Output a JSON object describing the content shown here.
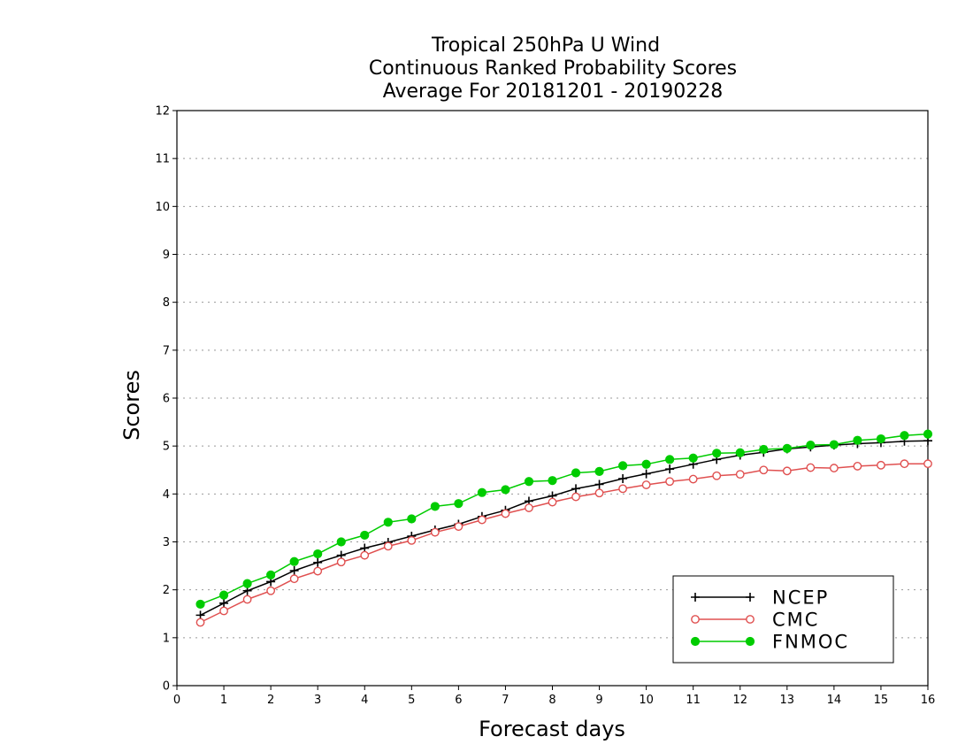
{
  "chart_data": {
    "type": "line",
    "title_lines": [
      "Tropical 250hPa U Wind",
      "Continuous Ranked Probability Scores",
      "Average For 20181201 - 20190228"
    ],
    "xlabel": "Forecast days",
    "ylabel": "Scores",
    "xlim": [
      0,
      16
    ],
    "ylim": [
      0,
      12
    ],
    "xticks": [
      0,
      1,
      2,
      3,
      4,
      5,
      6,
      7,
      8,
      9,
      10,
      11,
      12,
      13,
      14,
      15,
      16
    ],
    "yticks": [
      0,
      1,
      2,
      3,
      4,
      5,
      6,
      7,
      8,
      9,
      10,
      11,
      12
    ],
    "grid": "horizontal dotted",
    "legend_position": "bottom-right",
    "x": [
      0.5,
      1,
      1.5,
      2,
      2.5,
      3,
      3.5,
      4,
      4.5,
      5,
      5.5,
      6,
      6.5,
      7,
      7.5,
      8,
      8.5,
      9,
      9.5,
      10,
      10.5,
      11,
      11.5,
      12,
      12.5,
      13,
      13.5,
      14,
      14.5,
      15,
      15.5,
      16
    ],
    "series": [
      {
        "name": "NCEP",
        "color": "#000000",
        "marker": "plus",
        "values": [
          1.47,
          1.72,
          1.98,
          2.17,
          2.4,
          2.57,
          2.72,
          2.87,
          2.99,
          3.12,
          3.25,
          3.37,
          3.53,
          3.66,
          3.85,
          3.96,
          4.11,
          4.2,
          4.32,
          4.42,
          4.52,
          4.62,
          4.72,
          4.81,
          4.87,
          4.94,
          4.98,
          5.02,
          5.05,
          5.07,
          5.1,
          5.11
        ]
      },
      {
        "name": "CMC",
        "color": "#e05050",
        "marker": "open-circle",
        "values": [
          1.32,
          1.56,
          1.8,
          1.98,
          2.23,
          2.39,
          2.58,
          2.72,
          2.91,
          3.03,
          3.2,
          3.32,
          3.46,
          3.59,
          3.71,
          3.83,
          3.94,
          4.02,
          4.11,
          4.19,
          4.26,
          4.31,
          4.38,
          4.41,
          4.5,
          4.48,
          4.55,
          4.54,
          4.58,
          4.6,
          4.63,
          4.63
        ]
      },
      {
        "name": "FNMOC",
        "color": "#00cc00",
        "marker": "filled-circle",
        "values": [
          1.7,
          1.89,
          2.13,
          2.31,
          2.59,
          2.75,
          3.0,
          3.14,
          3.41,
          3.48,
          3.74,
          3.8,
          4.03,
          4.09,
          4.26,
          4.28,
          4.44,
          4.47,
          4.59,
          4.62,
          4.72,
          4.75,
          4.85,
          4.86,
          4.93,
          4.95,
          5.02,
          5.03,
          5.12,
          5.15,
          5.22,
          5.25
        ]
      }
    ]
  }
}
